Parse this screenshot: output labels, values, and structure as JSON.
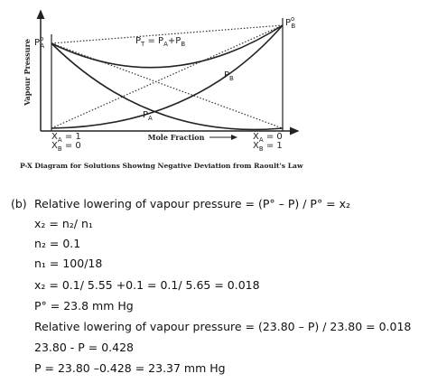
{
  "diagram": {
    "y_axis_label": "Vapour Pressure",
    "x_axis_label": "Mole Fraction",
    "caption": "P-X Diagram for Solutions Showing Negative Deviation from Raoult's Law",
    "labels": [
      {
        "parts": [
          {
            "t": "P"
          },
          {
            "sup": "o"
          },
          {
            "sub": "A"
          }
        ]
      },
      {
        "parts": [
          {
            "t": "P"
          },
          {
            "sup": "o"
          },
          {
            "sub": "B"
          }
        ]
      },
      {
        "parts": [
          {
            "t": "P"
          },
          {
            "sub": "T"
          },
          {
            "t": " = P"
          },
          {
            "sub": "A"
          },
          {
            "t": "+P"
          },
          {
            "sub": "B"
          }
        ]
      },
      {
        "parts": [
          {
            "t": "P"
          },
          {
            "sub": "B"
          }
        ]
      },
      {
        "parts": [
          {
            "t": "P"
          },
          {
            "sub": "A"
          }
        ]
      },
      {
        "parts": [
          {
            "t": "X"
          },
          {
            "sub": "A"
          },
          {
            "t": " = 1"
          }
        ]
      },
      {
        "parts": [
          {
            "t": "X"
          },
          {
            "sub": "B"
          },
          {
            "t": " = 0"
          }
        ]
      },
      {
        "parts": [
          {
            "t": "X"
          },
          {
            "sub": "A"
          },
          {
            "t": " = 0"
          }
        ]
      },
      {
        "parts": [
          {
            "t": "X"
          },
          {
            "sub": "B"
          },
          {
            "t": " = 1"
          }
        ]
      }
    ]
  },
  "solution": {
    "part": "(b)",
    "lines": [
      "Relative lowering of vapour pressure = (P° – P) / P° = x₂",
      "x₂ = n₂/ n₁",
      "n₂ = 0.1",
      "n₁ = 100/18",
      "x₂ = 0.1/ 5.55 +0.1 = 0.1/ 5.65 = 0.018",
      "P° = 23.8 mm Hg",
      "Relative lowering of vapour pressure = (23.80 – P) / 23.80 = 0.018",
      "23.80 - P = 0.428",
      "P = 23.80 –0.428 = 23.37 mm Hg"
    ]
  }
}
